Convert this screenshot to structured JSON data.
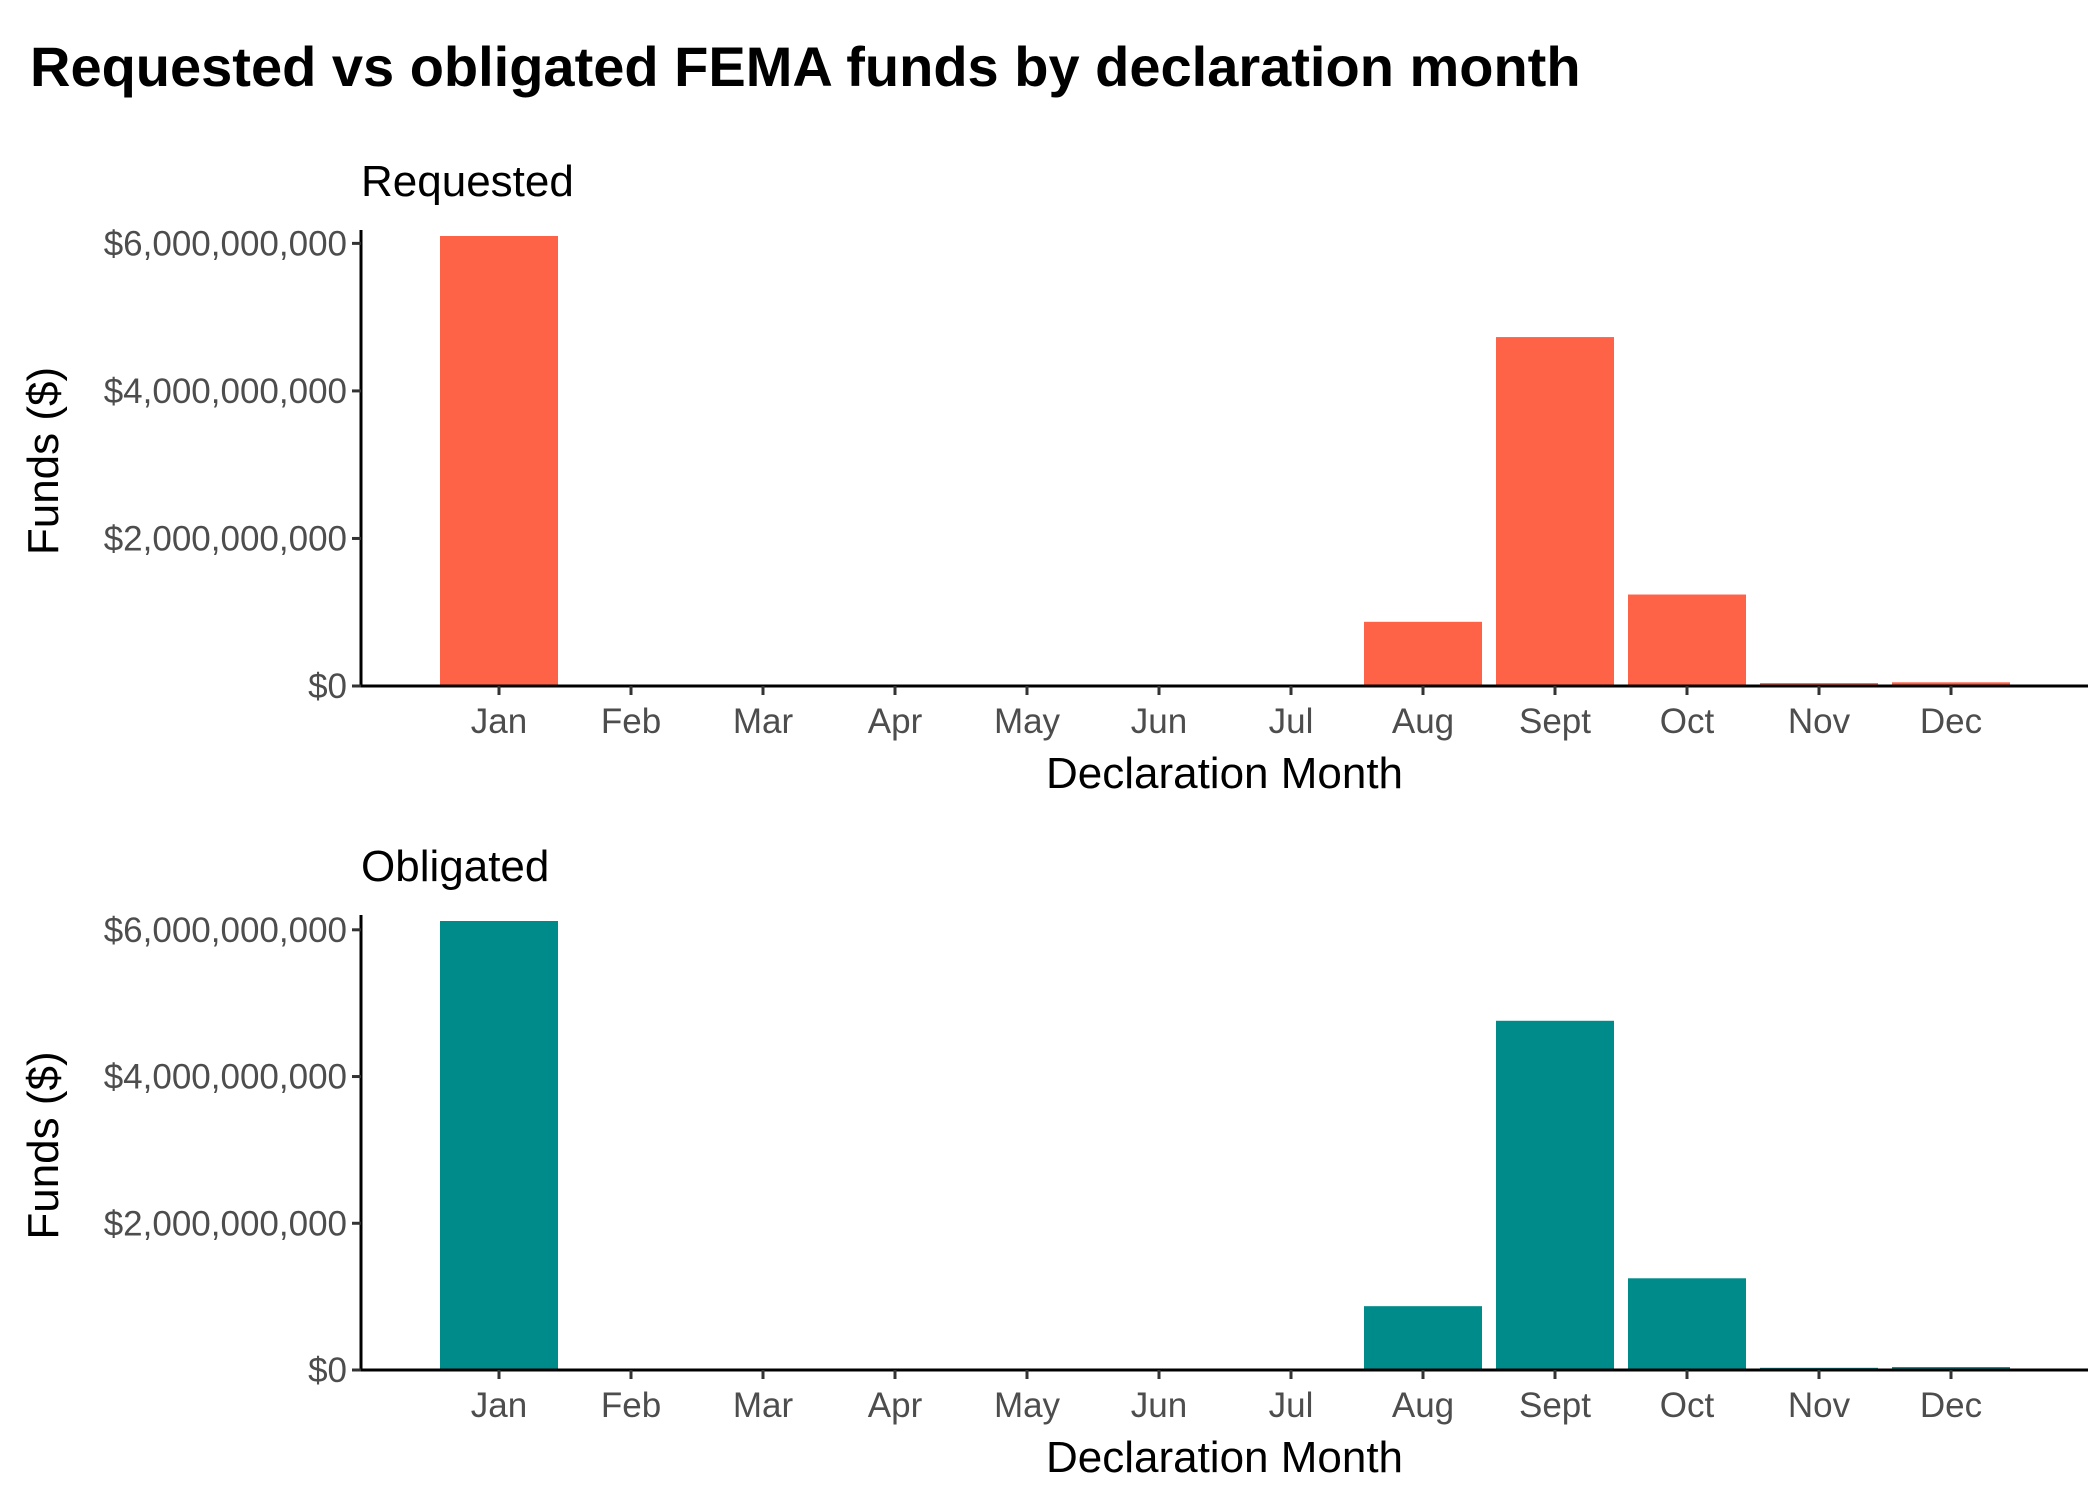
{
  "figure": {
    "title": "Requested vs obligated FEMA funds by declaration month"
  },
  "chart_data": [
    {
      "type": "bar",
      "title": "Requested",
      "xlabel": "Declaration Month",
      "ylabel": "Funds ($)",
      "categories": [
        "Jan",
        "Feb",
        "Mar",
        "Apr",
        "May",
        "Jun",
        "Jul",
        "Aug",
        "Sept",
        "Oct",
        "Nov",
        "Dec"
      ],
      "values": [
        6100000000,
        0,
        0,
        0,
        0,
        0,
        0,
        870000000,
        4730000000,
        1240000000,
        40000000,
        50000000
      ],
      "ylim": [
        0,
        6100000000
      ],
      "yticks": [
        0,
        2000000000,
        4000000000,
        6000000000
      ],
      "ytick_labels": [
        "$0",
        "$2,000,000,000",
        "$4,000,000,000",
        "$6,000,000,000"
      ],
      "color": "#FF6347",
      "grid": false,
      "legend": "none"
    },
    {
      "type": "bar",
      "title": "Obligated",
      "xlabel": "Declaration Month",
      "ylabel": "Funds ($)",
      "categories": [
        "Jan",
        "Feb",
        "Mar",
        "Apr",
        "May",
        "Jun",
        "Jul",
        "Aug",
        "Sept",
        "Oct",
        "Nov",
        "Dec"
      ],
      "values": [
        6120000000,
        0,
        0,
        0,
        0,
        0,
        0,
        870000000,
        4760000000,
        1250000000,
        30000000,
        40000000
      ],
      "ylim": [
        0,
        6120000000
      ],
      "yticks": [
        0,
        2000000000,
        4000000000,
        6000000000
      ],
      "ytick_labels": [
        "$0",
        "$2,000,000,000",
        "$4,000,000,000",
        "$6,000,000,000"
      ],
      "color": "#008B8B",
      "grid": false,
      "legend": "none"
    }
  ]
}
